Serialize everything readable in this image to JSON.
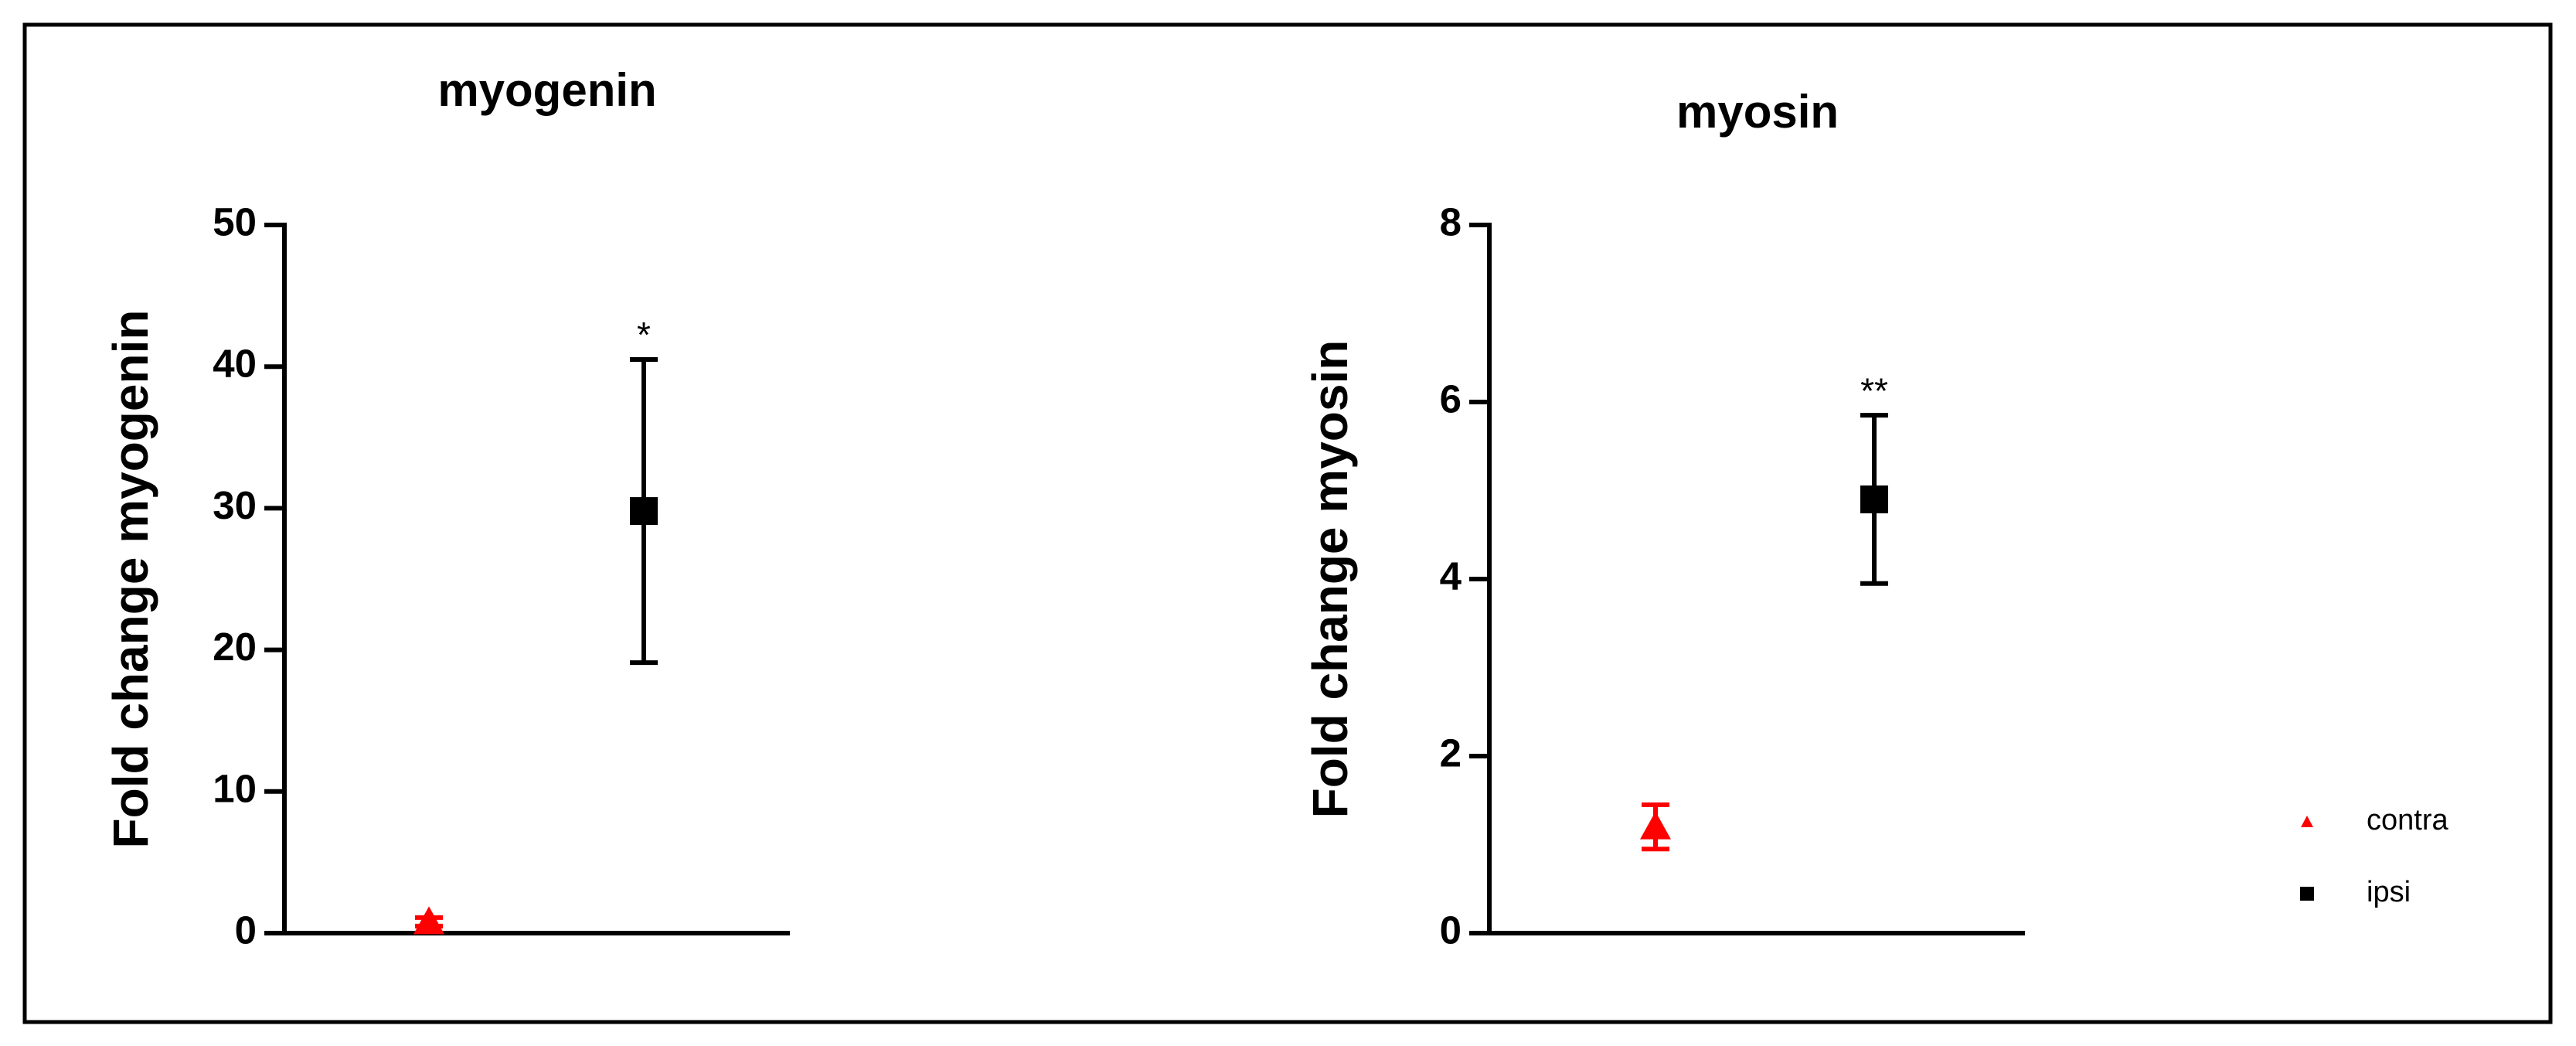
{
  "chart_data": [
    {
      "type": "dot",
      "title": "myogenin",
      "ylabel": "Fold change myogenin",
      "categories": [
        null,
        null
      ],
      "ylim": [
        0,
        50
      ],
      "yticks": [
        0,
        10,
        20,
        30,
        40,
        50
      ],
      "legend": false,
      "series": [
        {
          "name": "contra",
          "color": "#ff0000",
          "marker": "triangle",
          "values": [
            0.8,
            null
          ],
          "errors": [
            0.3,
            null
          ]
        },
        {
          "name": "ipsi",
          "color": "#000000",
          "marker": "square",
          "values": [
            null,
            29.8
          ],
          "errors": [
            null,
            10.7
          ],
          "annotation": "*"
        }
      ]
    },
    {
      "type": "dot",
      "title": "myosin",
      "ylabel": "Fold change myosin",
      "categories": [
        null,
        null
      ],
      "ylim": [
        0,
        8
      ],
      "yticks": [
        0,
        2,
        4,
        6,
        8
      ],
      "legend": "right",
      "series": [
        {
          "name": "contra",
          "color": "#ff0000",
          "marker": "triangle",
          "values": [
            1.2,
            null
          ],
          "errors": [
            0.25,
            null
          ]
        },
        {
          "name": "ipsi",
          "color": "#000000",
          "marker": "square",
          "values": [
            null,
            4.9
          ],
          "errors": [
            null,
            0.95
          ],
          "annotation": "**"
        }
      ]
    }
  ]
}
